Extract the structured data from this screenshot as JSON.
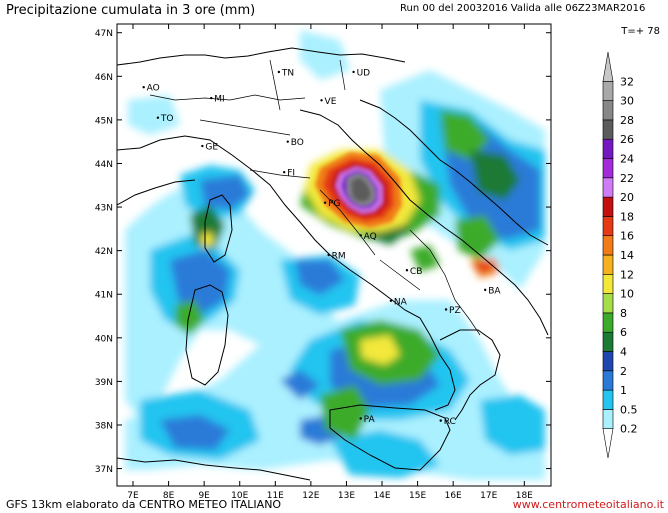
{
  "header": {
    "title": "Precipitazione cumulata in 3 ore (mm)",
    "run_info": "Run 00 del 20032016  Valida alle 06Z23MAR2016",
    "timestep": "T=+ 78"
  },
  "footer": {
    "credit": "GFS 13km elaborato da CENTRO METEO ITALIANO",
    "website": "www.centrometeoitaliano.it"
  },
  "map": {
    "lat_labels": [
      "47N",
      "46N",
      "45N",
      "44N",
      "43N",
      "42N",
      "41N",
      "40N",
      "39N",
      "38N",
      "37N"
    ],
    "lon_labels": [
      "7E",
      "8E",
      "9E",
      "10E",
      "11E",
      "12E",
      "13E",
      "14E",
      "15E",
      "16E",
      "17E",
      "18E"
    ],
    "cities": [
      {
        "name": "AO",
        "lon": 7.3,
        "lat": 45.75
      },
      {
        "name": "MI",
        "lon": 9.2,
        "lat": 45.5
      },
      {
        "name": "TO",
        "lon": 7.7,
        "lat": 45.05
      },
      {
        "name": "TN",
        "lon": 11.1,
        "lat": 46.1
      },
      {
        "name": "UD",
        "lon": 13.2,
        "lat": 46.1
      },
      {
        "name": "VE",
        "lon": 12.3,
        "lat": 45.45
      },
      {
        "name": "GE",
        "lon": 8.95,
        "lat": 44.4
      },
      {
        "name": "BO",
        "lon": 11.35,
        "lat": 44.5
      },
      {
        "name": "FI",
        "lon": 11.25,
        "lat": 43.8
      },
      {
        "name": "PG",
        "lon": 12.4,
        "lat": 43.1
      },
      {
        "name": "AQ",
        "lon": 13.4,
        "lat": 42.35
      },
      {
        "name": "RM",
        "lon": 12.5,
        "lat": 41.9
      },
      {
        "name": "CB",
        "lon": 14.7,
        "lat": 41.55
      },
      {
        "name": "BA",
        "lon": 16.9,
        "lat": 41.1
      },
      {
        "name": "NA",
        "lon": 14.25,
        "lat": 40.85
      },
      {
        "name": "PZ",
        "lon": 15.8,
        "lat": 40.65
      },
      {
        "name": "PA",
        "lon": 13.4,
        "lat": 38.15
      },
      {
        "name": "RC",
        "lon": 15.65,
        "lat": 38.1
      }
    ]
  },
  "legend": {
    "unit": "mm",
    "levels": [
      "0.2",
      "0.5",
      "1",
      "2",
      "4",
      "6",
      "8",
      "10",
      "12",
      "14",
      "16",
      "18",
      "20",
      "22",
      "24",
      "26",
      "28",
      "30",
      "32"
    ],
    "colors": [
      "#ffffff",
      "#aaf0ff",
      "#22c4f0",
      "#2b7ad8",
      "#1e46b0",
      "#1a7a34",
      "#3cab2c",
      "#a7dc4a",
      "#f3e83a",
      "#f5b21e",
      "#f07b18",
      "#e43a15",
      "#c21010",
      "#cf7cf5",
      "#a22ad8",
      "#7518c0",
      "#5c5c5c",
      "#878787",
      "#a9a9a9",
      "#c8c8c8"
    ]
  },
  "colors": {
    "sea": "#ffffff",
    "land": "#e5e5e5",
    "website_red": "#d01a1a"
  }
}
